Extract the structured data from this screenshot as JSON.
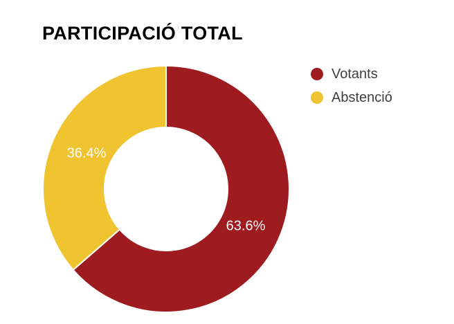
{
  "title": "PARTICIPACIÓ TOTAL",
  "legend": {
    "items": [
      {
        "label": "Votants",
        "color": "#9E1B1F"
      },
      {
        "label": "Abstenció",
        "color": "#F0C330"
      }
    ]
  },
  "chart_data": {
    "type": "pie",
    "subtype": "donut",
    "title": "PARTICIPACIÓ TOTAL",
    "start_angle_deg": 0,
    "direction": "clockwise",
    "inner_radius_ratio": 0.5,
    "legend_position": "right",
    "slice_border_color": "#FFFFFF",
    "label_color": "#FFFFFF",
    "slices": [
      {
        "name": "Votants",
        "value": 63.6,
        "display": "63.6%",
        "color": "#9E1B1F"
      },
      {
        "name": "Abstenció",
        "value": 36.4,
        "display": "36.4%",
        "color": "#F0C330"
      }
    ]
  }
}
